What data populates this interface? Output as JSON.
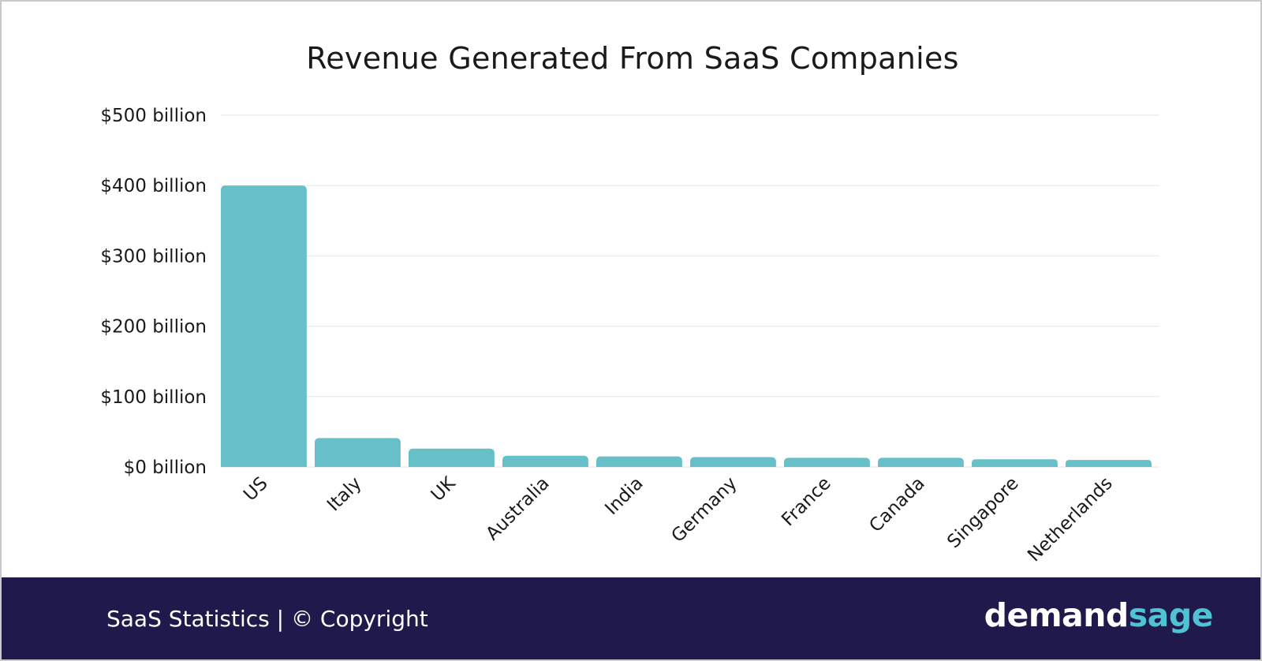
{
  "chart_data": {
    "type": "bar",
    "title": "Revenue Generated From SaaS Companies",
    "categories": [
      "US",
      "Italy",
      "UK",
      "Australia",
      "India",
      "Germany",
      "France",
      "Canada",
      "Singapore",
      "Netherlands"
    ],
    "values": [
      400,
      41,
      26,
      16,
      15,
      14,
      13,
      13,
      11,
      10
    ],
    "unit": "billion USD",
    "y_ticks": [
      "$0 billion",
      "$100 billion",
      "$200 billion",
      "$300 billion",
      "$400 billion",
      "$500 billion"
    ],
    "ylim": [
      0,
      500
    ],
    "xlabel": "",
    "ylabel": "",
    "grid": true,
    "bar_color": "#67bfc7"
  },
  "footer": {
    "text": "SaaS Statistics | © Copyright",
    "logo_part1": "demand",
    "logo_part2": "sage",
    "background": "#1f1a4b",
    "logo_accent": "#4fc3d3"
  }
}
